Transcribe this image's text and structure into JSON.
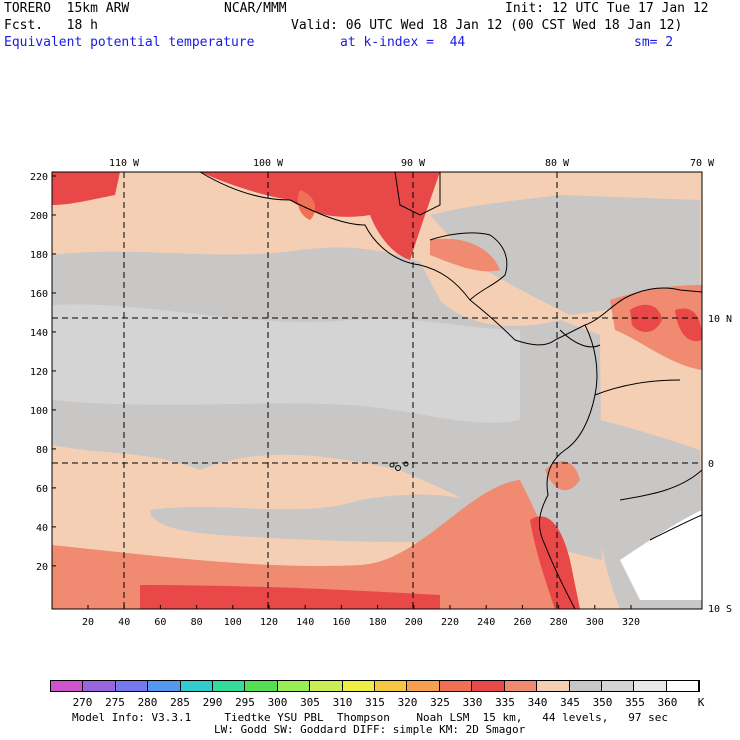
{
  "header": {
    "model": "TORERO  15km ARW",
    "org": "NCAR/MMM",
    "init": "Init: 12 UTC Tue 17 Jan 12",
    "fcst": "Fcst.   18 h",
    "valid": "Valid: 06 UTC Wed 18 Jan 12 (00 CST Wed 18 Jan 12)",
    "field": "Equivalent potential temperature",
    "level": "at k-index =  44",
    "smooth": "sm= 2"
  },
  "map": {
    "lon_labels": [
      "110 W",
      "100 W",
      "90 W",
      "80 W",
      "70 W"
    ],
    "lat_labels": [
      "10 N",
      "0",
      "10 S"
    ],
    "y_ticks": [
      "220",
      "200",
      "180",
      "160",
      "140",
      "120",
      "100",
      "80",
      "60",
      "40",
      "20"
    ],
    "x_ticks": [
      "20",
      "40",
      "60",
      "80",
      "100",
      "120",
      "140",
      "160",
      "180",
      "200",
      "220",
      "240",
      "260",
      "280",
      "300",
      "320"
    ]
  },
  "colorbar": {
    "labels": [
      "270",
      "275",
      "280",
      "285",
      "290",
      "295",
      "300",
      "305",
      "310",
      "315",
      "320",
      "325",
      "330",
      "335",
      "340",
      "345",
      "350",
      "355",
      "360"
    ],
    "unit": "K",
    "colors": [
      "#cc55cc",
      "#9966dd",
      "#7777ee",
      "#5599ee",
      "#33cccc",
      "#33dd99",
      "#55dd55",
      "#99ee55",
      "#ccee55",
      "#eeee44",
      "#f5c844",
      "#f5a050",
      "#f07055",
      "#e84848",
      "#f08a70",
      "#f5cfb4",
      "#c9c6c6",
      "#d4d4d4",
      "#e8e8e8",
      "#ffffff"
    ]
  },
  "footer": {
    "line1": "Model Info: V3.3.1     Tiedtke YSU PBL  Thompson    Noah LSM  15 km,   44 levels,   97 sec",
    "line2": "LW: Godd SW: Goddard DIFF: simple KM: 2D Smagor"
  }
}
